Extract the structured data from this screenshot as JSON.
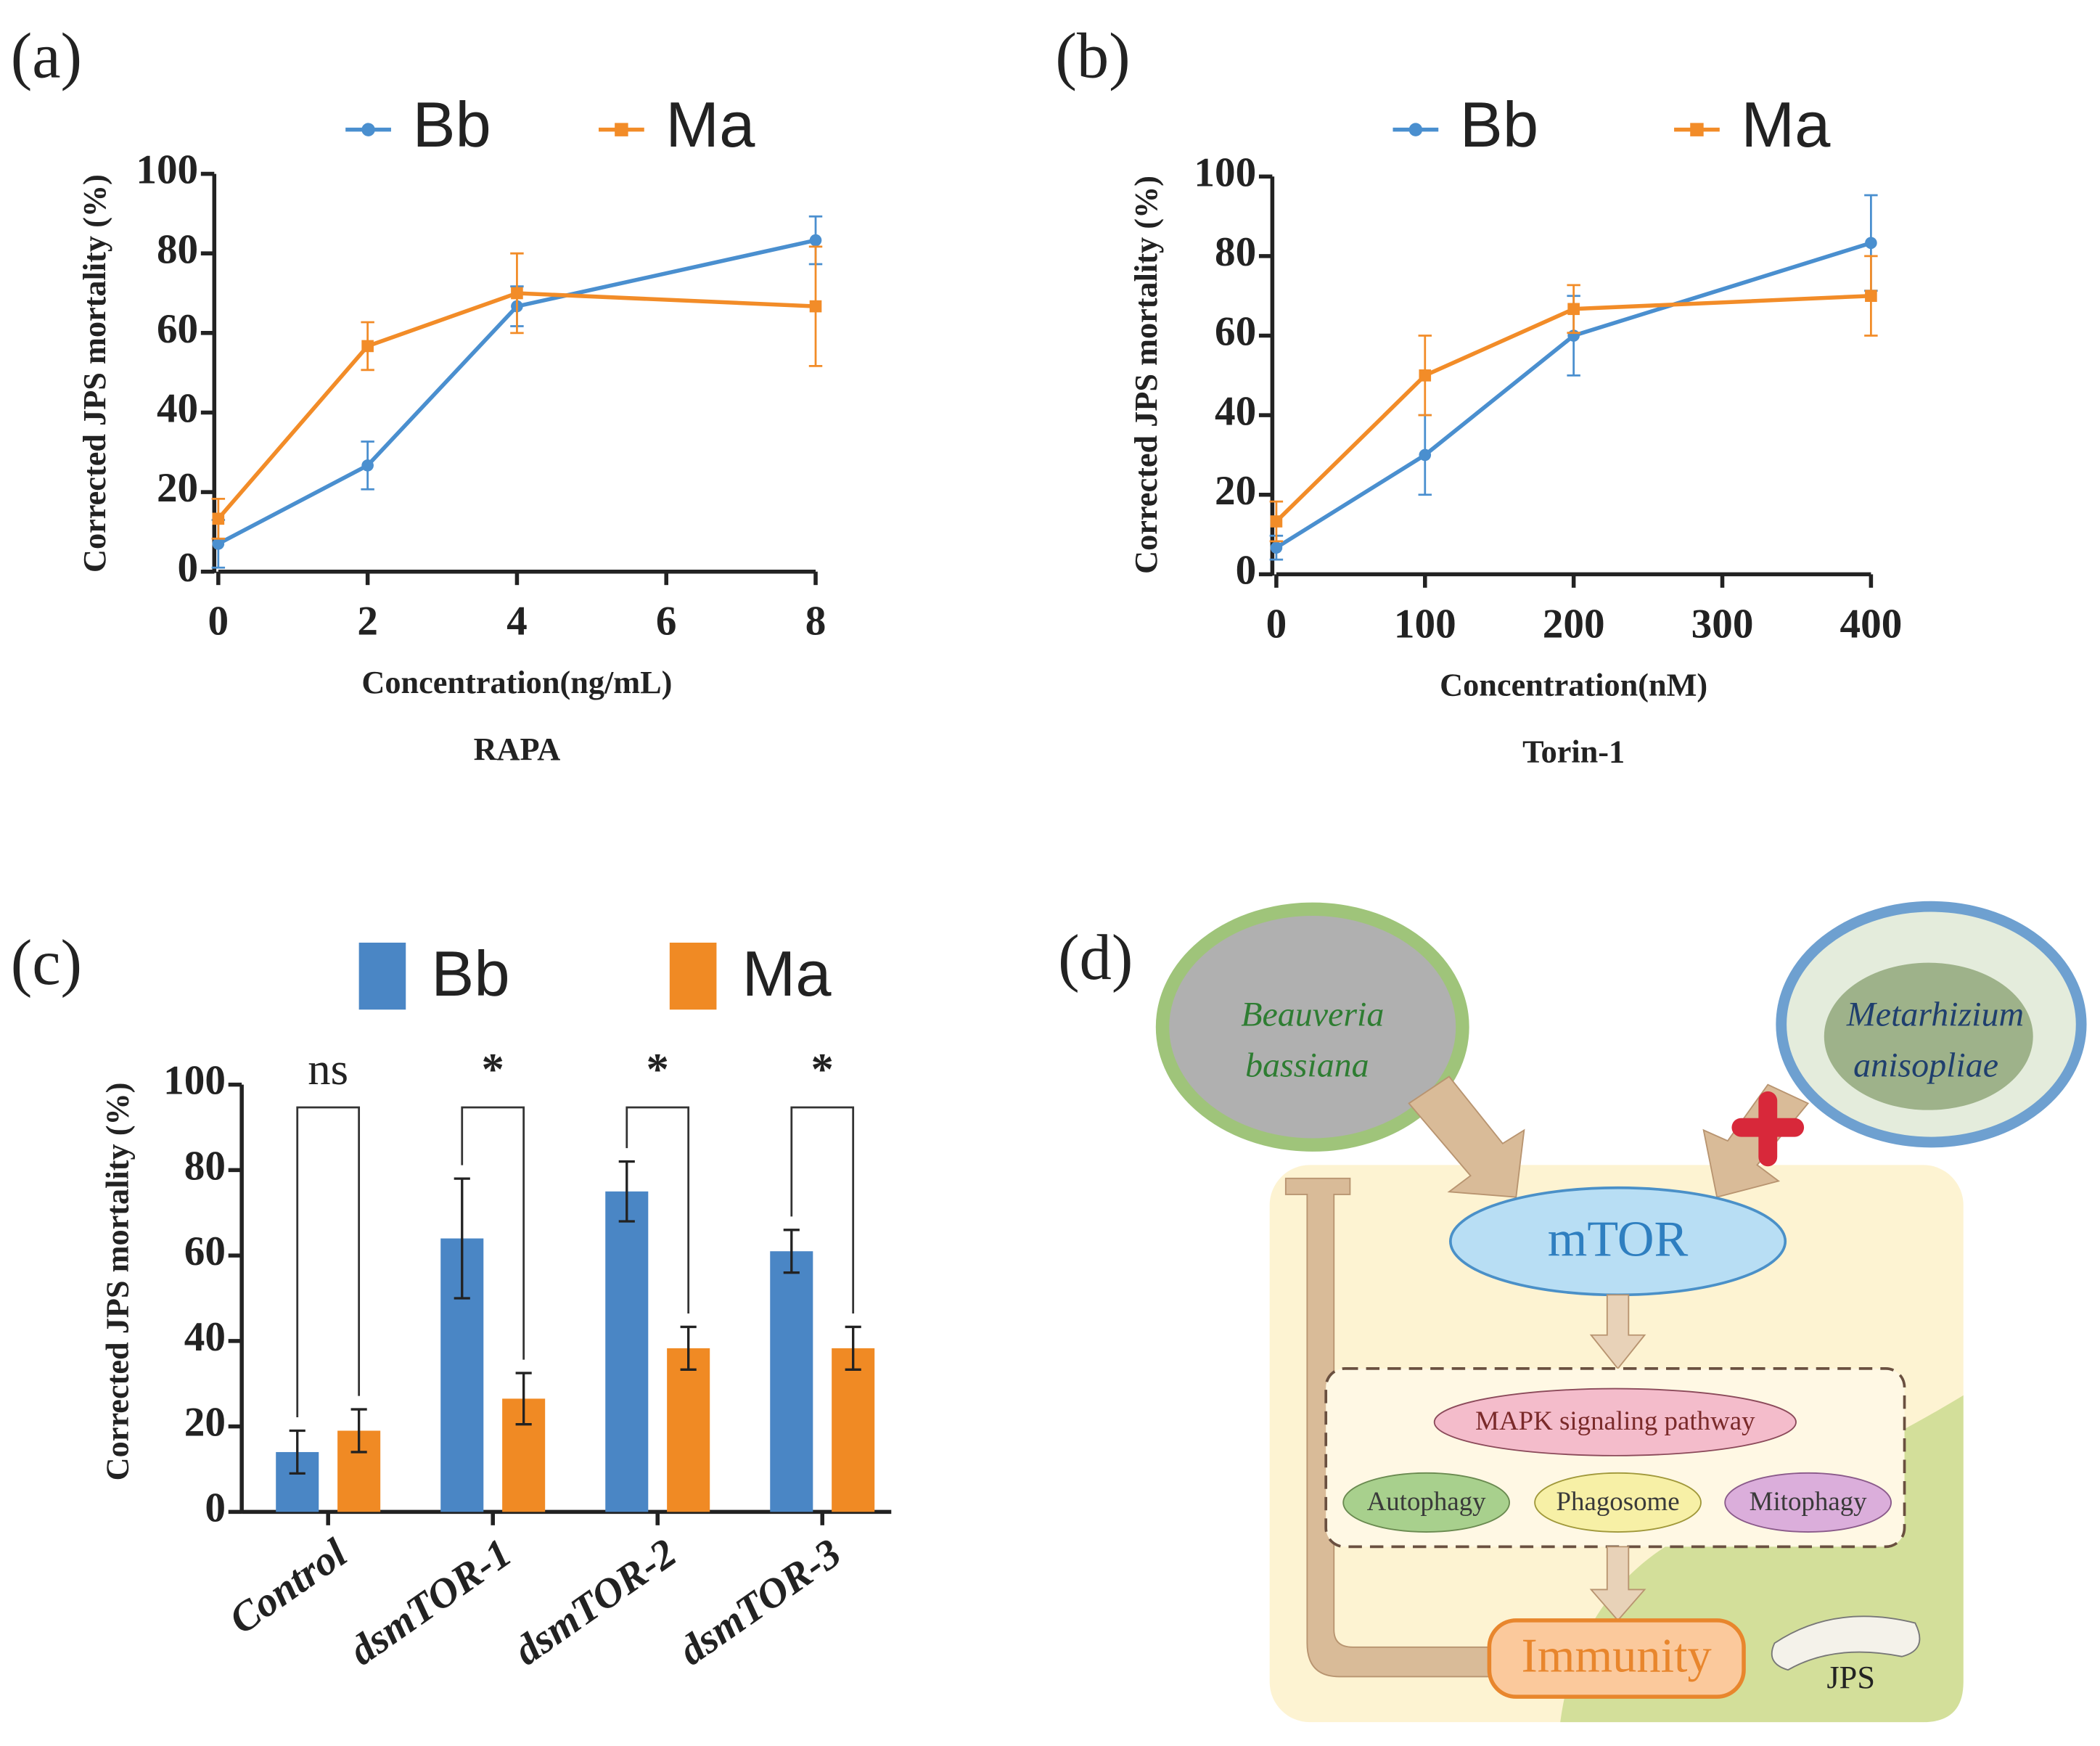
{
  "chart_data": [
    {
      "type": "line",
      "panel": "(a)",
      "x_label": "Concentration(ng/mL)",
      "subtitle": "RAPA",
      "y_label": "Corrected JPS mortality (%)",
      "x": [
        0,
        2,
        4,
        8
      ],
      "xlim": [
        0,
        8
      ],
      "xticks": [
        0,
        2,
        4,
        6,
        8
      ],
      "ylim": [
        0,
        100
      ],
      "yticks": [
        0,
        20,
        40,
        60,
        80,
        100
      ],
      "series": [
        {
          "name": "Bb",
          "color": "#4a8fcf",
          "marker": "circle",
          "values": [
            7,
            26.7,
            66.7,
            83.3
          ],
          "errors": [
            6,
            6,
            5,
            6
          ]
        },
        {
          "name": "Ma",
          "color": "#f28c28",
          "marker": "square",
          "values": [
            13.3,
            56.7,
            70,
            66.7
          ],
          "errors": [
            5,
            6,
            10,
            15
          ]
        }
      ]
    },
    {
      "type": "line",
      "panel": "(b)",
      "x_label": "Concentration(nM)",
      "subtitle": "Torin-1",
      "y_label": "Corrected JPS mortality (%)",
      "x": [
        0,
        100,
        200,
        400
      ],
      "xlim": [
        0,
        400
      ],
      "xticks": [
        0,
        100,
        200,
        300,
        400
      ],
      "ylim": [
        0,
        100
      ],
      "yticks": [
        0,
        20,
        40,
        60,
        80,
        100
      ],
      "series": [
        {
          "name": "Bb",
          "color": "#4a8fcf",
          "marker": "circle",
          "values": [
            6.7,
            30,
            60,
            83.3
          ],
          "errors": [
            3,
            10,
            10,
            12
          ]
        },
        {
          "name": "Ma",
          "color": "#f28c28",
          "marker": "square",
          "values": [
            13.3,
            50,
            66.7,
            70
          ],
          "errors": [
            5,
            10,
            6,
            10
          ]
        }
      ]
    },
    {
      "type": "bar",
      "panel": "(c)",
      "y_label": "Corrected JPS mortality (%)",
      "categories": [
        "Control",
        "dsmTOR-1",
        "dsmTOR-2",
        "dsmTOR-3"
      ],
      "significance": [
        "ns",
        "*",
        "*",
        "*"
      ],
      "ylim": [
        0,
        100
      ],
      "yticks": [
        0,
        20,
        40,
        60,
        80,
        100
      ],
      "series": [
        {
          "name": "Bb",
          "color": "#4a86c5",
          "values": [
            14,
            64,
            75,
            61
          ],
          "errors": [
            5,
            14,
            7,
            5
          ]
        },
        {
          "name": "Ma",
          "color": "#f08a24",
          "values": [
            19,
            26.5,
            38.3,
            38.3
          ],
          "errors": [
            5,
            6,
            5,
            5
          ]
        }
      ]
    }
  ],
  "diagram": {
    "panel": "(d)",
    "beauveria": {
      "genus": "Beauveria",
      "species": "bassiana"
    },
    "metarhizium": {
      "genus": "Metarhizium",
      "species": "anisopliae"
    },
    "hub": "mTOR",
    "pathway": "MAPK signaling pathway",
    "processes": [
      "Autophagy",
      "Phagosome",
      "Mitophagy"
    ],
    "outcome": "Immunity",
    "host": "JPS"
  }
}
